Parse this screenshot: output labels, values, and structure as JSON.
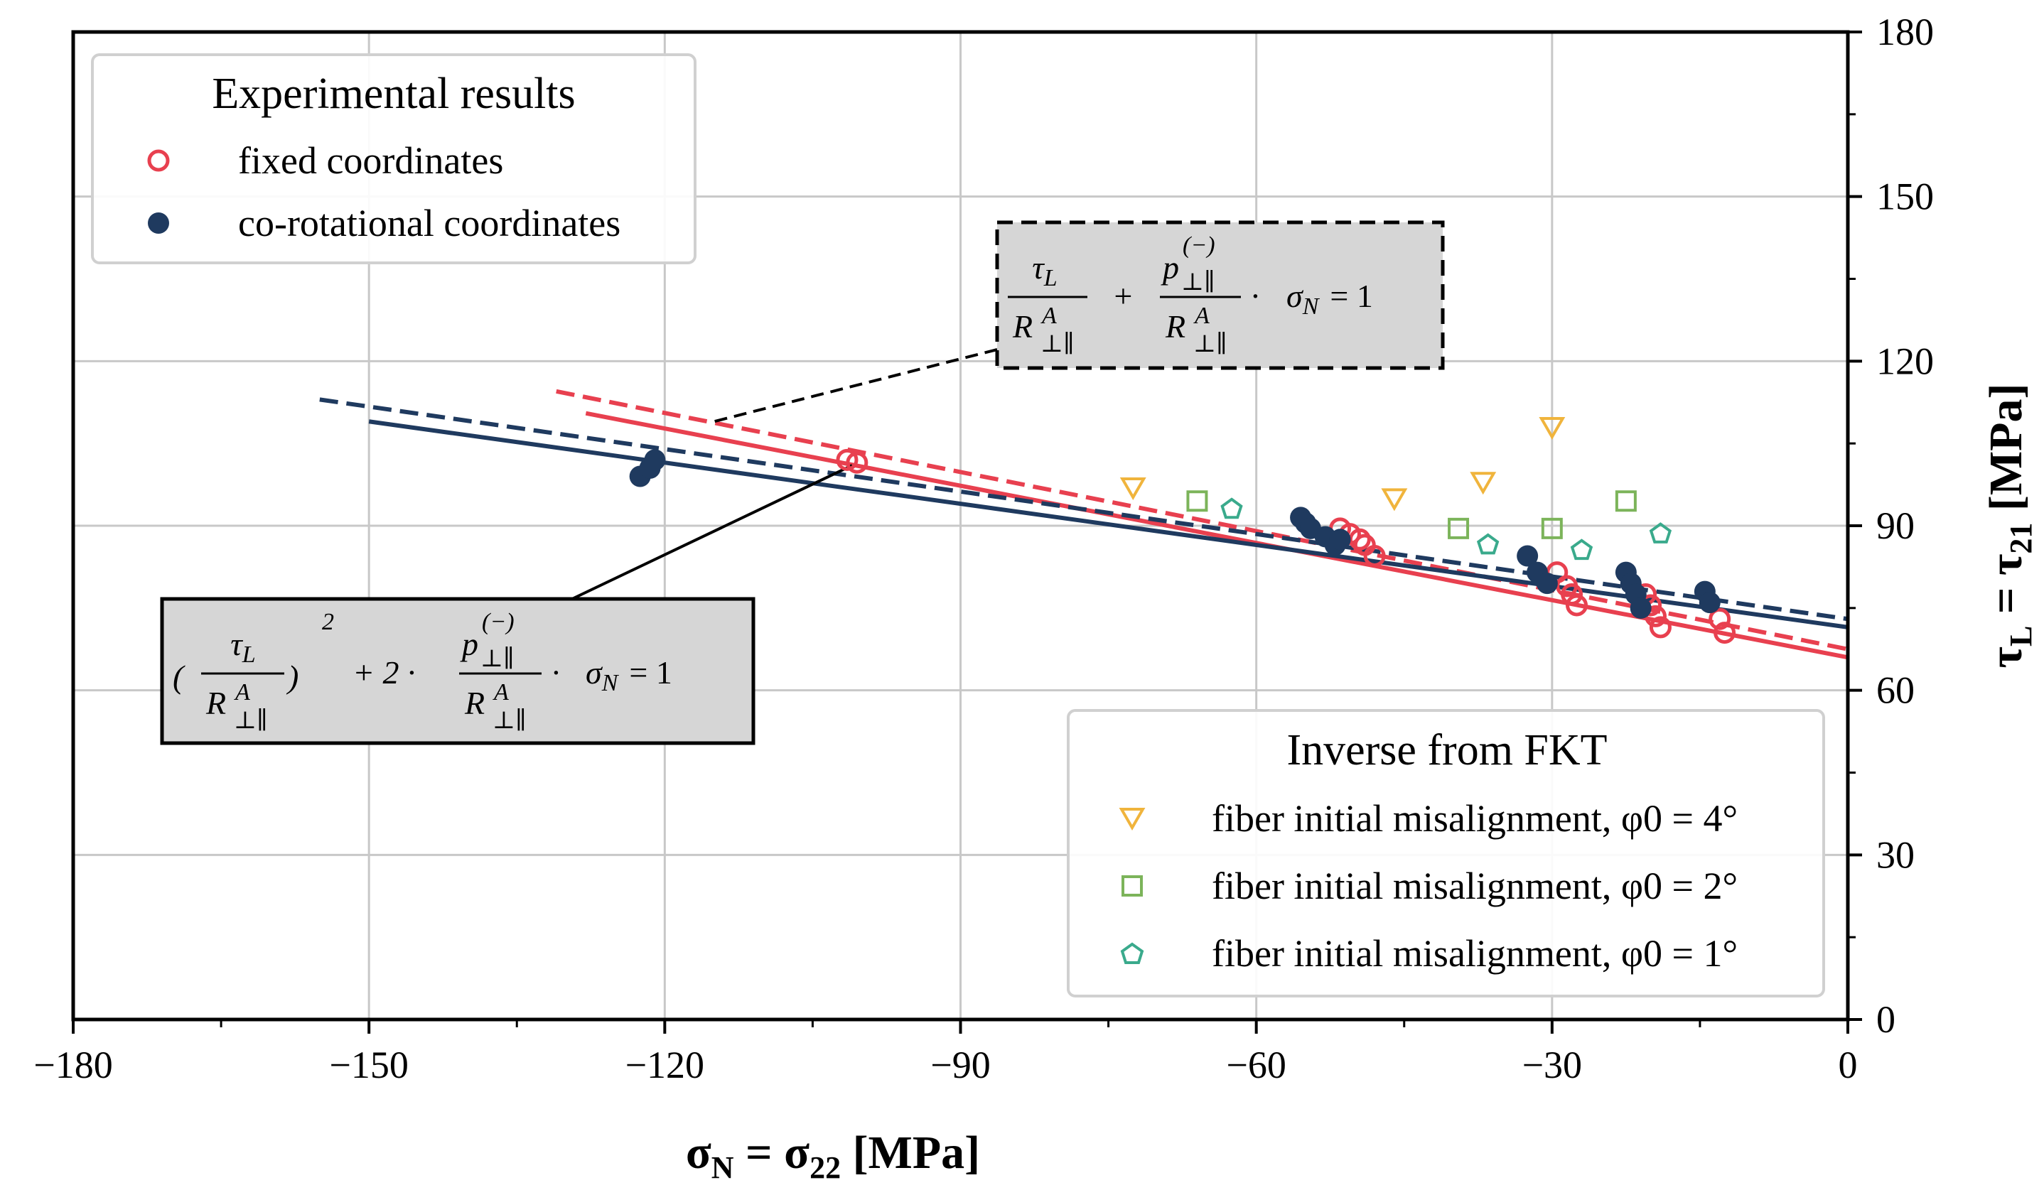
{
  "chart_data": {
    "type": "scatter",
    "xlabel": "σN = σ22 [MPa]",
    "ylabel": "τL = τ21 [MPa]",
    "xlim": [
      -180,
      0
    ],
    "ylim": [
      0,
      180
    ],
    "x_ticks": [
      "−180",
      "−150",
      "−120",
      "−90",
      "−60",
      "−30",
      "0"
    ],
    "y_ticks": [
      "0",
      "30",
      "60",
      "90",
      "120",
      "150",
      "180"
    ],
    "y_axis_side": "right",
    "grid": true,
    "colors": {
      "fixed": "#e8404f",
      "corot": "#1f3a5f",
      "phi4": "#f0b43c",
      "phi2": "#7cb45a",
      "phi1": "#3aaa8c",
      "grid": "#c8c8c8"
    },
    "legend_experimental": {
      "title": "Experimental results",
      "fixed_label": "fixed coordinates",
      "corot_label": "co-rotational coordinates",
      "position": "top-left"
    },
    "legend_inverse": {
      "title": "Inverse from FKT",
      "phi4_label": "fiber initial misalignment, φ0 = 4°",
      "phi2_label": "fiber initial misalignment, φ0 = 2°",
      "phi1_label": "fiber initial misalignment, φ0 = 1°",
      "position": "bottom-right"
    },
    "series": [
      {
        "name": "fixed coordinates",
        "marker": "open-circle",
        "x": [
          -101.5,
          -100.5,
          -51.5,
          -50.5,
          -49.5,
          -49,
          -48,
          -29.5,
          -28.5,
          -28,
          -27.5,
          -20.5,
          -20,
          -19.5,
          -19,
          -13,
          -12.5
        ],
        "y": [
          102,
          101.5,
          89.5,
          88.5,
          87.5,
          86.5,
          84.5,
          81.5,
          79,
          77.5,
          75.5,
          77.5,
          75.5,
          73.5,
          71.5,
          73,
          70.5
        ]
      },
      {
        "name": "co-rotational coordinates",
        "marker": "filled-circle",
        "x": [
          -122.5,
          -121.5,
          -121,
          -55.5,
          -55,
          -54.5,
          -53,
          -52,
          -51.5,
          -32.5,
          -31.5,
          -30.5,
          -22.5,
          -22,
          -21.5,
          -21,
          -14.5,
          -14
        ],
        "y": [
          99,
          100.5,
          102,
          91.5,
          90.5,
          89.5,
          88,
          86.5,
          87.5,
          84.5,
          81.5,
          79.5,
          81.5,
          79.5,
          77.5,
          75,
          78,
          76
        ]
      },
      {
        "name": "fiber initial misalignment, φ0 = 4°",
        "marker": "open-triangle-down",
        "x": [
          -72.5,
          -46,
          -37,
          -30
        ],
        "y": [
          97,
          95,
          98,
          108
        ]
      },
      {
        "name": "fiber initial misalignment, φ0 = 2°",
        "marker": "open-square",
        "x": [
          -66,
          -39.5,
          -30,
          -22.5
        ],
        "y": [
          94.5,
          89.5,
          89.5,
          94.5
        ]
      },
      {
        "name": "fiber initial misalignment, φ0 = 1°",
        "marker": "open-pentagon",
        "x": [
          -62.5,
          -36.5,
          -27,
          -19
        ],
        "y": [
          93,
          86.5,
          85.5,
          88.5
        ]
      }
    ],
    "fit_lines": [
      {
        "name": "fixed coordinates, linear criterion",
        "series_color": "fixed",
        "style": "solid",
        "x": [
          -128,
          0
        ],
        "y": [
          110.5,
          66
        ]
      },
      {
        "name": "fixed coordinates, quadratic criterion",
        "series_color": "fixed",
        "style": "dashed",
        "x": [
          -131,
          0
        ],
        "y": [
          114.5,
          67.5
        ]
      },
      {
        "name": "co-rotational coordinates, linear criterion",
        "series_color": "corot",
        "style": "solid",
        "x": [
          -150,
          0
        ],
        "y": [
          109,
          71.5
        ]
      },
      {
        "name": "co-rotational coordinates, quadratic criterion",
        "series_color": "corot",
        "style": "dashed",
        "x": [
          -155,
          0
        ],
        "y": [
          113,
          73
        ]
      }
    ],
    "annotations": [
      {
        "name": "linear-criterion",
        "border": "dashed",
        "target": {
          "x": -115,
          "y": 109
        },
        "tau": "τ",
        "tau_sub": "L",
        "R": "R",
        "R_sup": "A",
        "R_sub": "⊥∥",
        "p": "p",
        "p_sup": "(−)",
        "p_sub": "⊥∥",
        "plus": "+",
        "dot": "·",
        "sigma": "σ",
        "sigma_sub": "N",
        "equals": "= 1"
      },
      {
        "name": "quadratic-criterion",
        "border": "solid",
        "target": {
          "x": -101,
          "y": 101
        },
        "lparen": "(",
        "rparen": ")",
        "square": "2",
        "tau": "τ",
        "tau_sub": "L",
        "R": "R",
        "R_sup": "A",
        "R_sub": "⊥∥",
        "p": "p",
        "p_sup": "(−)",
        "p_sub": "⊥∥",
        "plus_two": "+ 2 ·",
        "dot": "·",
        "sigma": "σ",
        "sigma_sub": "N",
        "equals": "= 1"
      }
    ]
  }
}
